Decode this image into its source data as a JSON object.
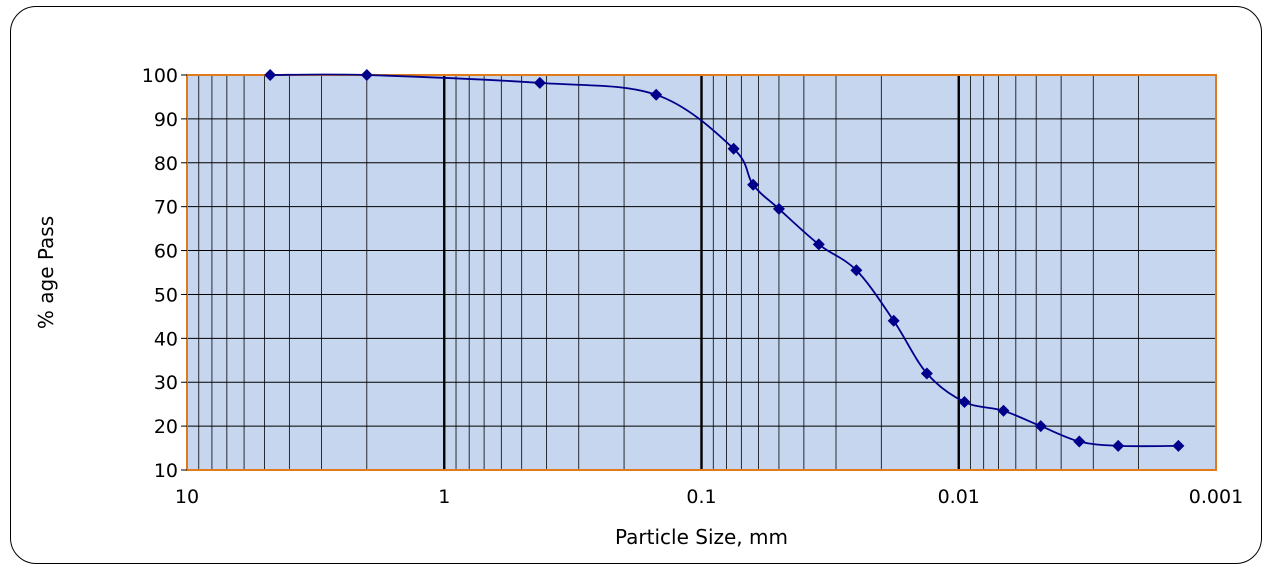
{
  "chart_data": {
    "type": "line",
    "title": "",
    "xlabel": "Particle Size, mm",
    "ylabel": "% age Pass",
    "x_scale": "log",
    "x_reversed": true,
    "xlim": [
      10,
      0.001
    ],
    "ylim": [
      10,
      100
    ],
    "x_ticks": [
      10,
      1,
      0.1,
      0.01,
      0.001
    ],
    "x_tick_labels": [
      "10",
      "1",
      "0.1",
      "0.01",
      "0.001"
    ],
    "y_ticks": [
      10,
      20,
      30,
      40,
      50,
      60,
      70,
      80,
      90,
      100
    ],
    "y_tick_labels": [
      "10",
      "20",
      "30",
      "40",
      "50",
      "60",
      "70",
      "80",
      "90",
      "100"
    ],
    "grid": true,
    "legend": "none",
    "colors": {
      "plot_background": "#c5d6ee",
      "plot_border": "#e07a1a",
      "series": "#00008b",
      "grid": "#000000"
    },
    "series": [
      {
        "marker": "diamond",
        "smooth": true,
        "x": [
          4.75,
          2.0,
          0.425,
          0.15,
          0.075,
          0.063,
          0.05,
          0.035,
          0.025,
          0.0179,
          0.0133,
          0.0095,
          0.0067,
          0.0048,
          0.0034,
          0.0024,
          0.0014
        ],
        "y": [
          100,
          100,
          98.2,
          95.5,
          83.2,
          75,
          69.5,
          61.4,
          55.5,
          44,
          32,
          25.5,
          23.5,
          20,
          16.5,
          15.5,
          15.5
        ]
      }
    ]
  }
}
